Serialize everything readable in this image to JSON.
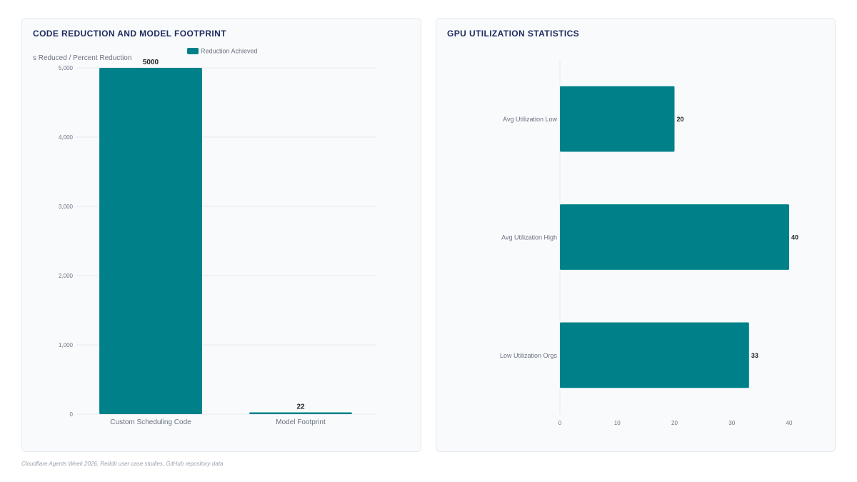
{
  "colors": {
    "bar": "#00818a",
    "title": "#1e2a5e",
    "grid": "#e8ebef",
    "axis_text": "#6b7280",
    "value_text": "#222222"
  },
  "left_panel": {
    "title": "CODE REDUCTION AND MODEL FOOTPRINT"
  },
  "right_panel": {
    "title": "GPU UTILIZATION STATISTICS"
  },
  "chart_data": [
    {
      "type": "bar",
      "orientation": "vertical",
      "title": "CODE REDUCTION AND MODEL FOOTPRINT",
      "ylabel": "s Reduced / Percent Reduction",
      "xlabel": "",
      "categories": [
        "Custom Scheduling Code",
        "Model Footprint"
      ],
      "series": [
        {
          "name": "Reduction Achieved",
          "values": [
            5000,
            22
          ]
        }
      ],
      "data_labels": [
        "5000",
        "22"
      ],
      "ylim": [
        0,
        5000
      ],
      "yticks": [
        0,
        1000,
        2000,
        3000,
        4000,
        5000
      ],
      "ytick_labels": [
        "0",
        "1,000",
        "2,000",
        "3,000",
        "4,000",
        "5,000"
      ],
      "legend": "top",
      "grid": true
    },
    {
      "type": "bar",
      "orientation": "horizontal",
      "title": "GPU UTILIZATION STATISTICS",
      "xlabel": "",
      "ylabel": "",
      "categories": [
        "Avg Utilization Low",
        "Avg Utilization High",
        "Low Utilization Orgs"
      ],
      "series": [
        {
          "values": [
            20,
            40,
            33
          ]
        }
      ],
      "data_labels": [
        "20",
        "40",
        "33"
      ],
      "xlim": [
        0,
        40
      ],
      "xticks": [
        0,
        10,
        20,
        30,
        40
      ],
      "xtick_labels": [
        "0",
        "10",
        "20",
        "30",
        "40"
      ],
      "legend": "none",
      "grid": false
    }
  ],
  "footer": {
    "source": "Cloudflare Agents Week 2026, Reddit user case studies, GitHub repository data"
  }
}
